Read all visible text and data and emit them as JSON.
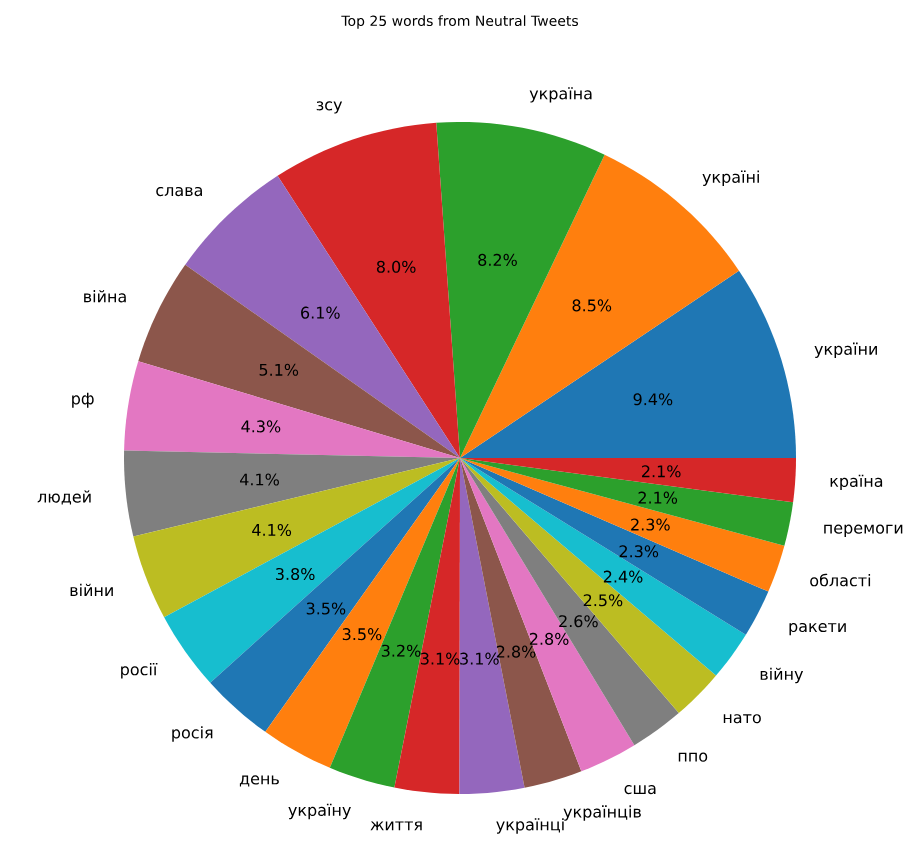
{
  "chart_data": {
    "type": "pie",
    "title": "Top 25 words from Neutral Tweets",
    "categories": [
      "україни",
      "україні",
      "україна",
      "зсу",
      "слава",
      "війна",
      "рф",
      "людей",
      "війни",
      "росії",
      "росія",
      "день",
      "україну",
      "життя",
      "українці",
      "українців",
      "сша",
      "ппо",
      "нато",
      "війну",
      "ракети",
      "області",
      "перемоги",
      "країна"
    ],
    "values": [
      9.4,
      8.5,
      8.2,
      8.0,
      6.1,
      5.1,
      4.3,
      4.1,
      4.1,
      3.8,
      3.5,
      3.5,
      3.2,
      3.1,
      3.1,
      2.8,
      2.8,
      2.6,
      2.5,
      2.4,
      2.3,
      2.3,
      2.1,
      2.1
    ],
    "value_labels": [
      "9.4%",
      "8.5%",
      "8.2%",
      "8.0%",
      "6.1%",
      "5.1%",
      "4.3%",
      "4.1%",
      "4.1%",
      "3.8%",
      "3.5%",
      "3.5%",
      "3.2%",
      "3.1%",
      "3.1%",
      "2.8%",
      "2.8%",
      "2.6%",
      "2.5%",
      "2.4%",
      "2.3%",
      "2.3%",
      "2.1%",
      "2.1%"
    ],
    "colors": [
      "#1f77b4",
      "#ff7f0e",
      "#2ca02c",
      "#d62728",
      "#9467bd",
      "#8c564b",
      "#e377c2",
      "#7f7f7f",
      "#bcbd22",
      "#17becf",
      "#1f77b4",
      "#ff7f0e",
      "#2ca02c",
      "#d62728",
      "#9467bd",
      "#8c564b",
      "#e377c2",
      "#7f7f7f",
      "#bcbd22",
      "#17becf",
      "#1f77b4",
      "#ff7f0e",
      "#2ca02c",
      "#d62728"
    ]
  }
}
